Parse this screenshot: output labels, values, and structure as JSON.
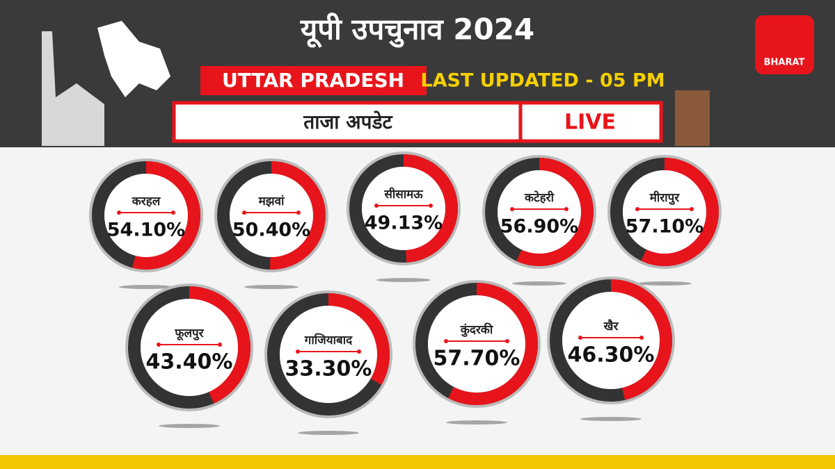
{
  "header": {
    "title": "यूपी उपचुनाव 2024",
    "state": "UTTAR PRADESH",
    "updated": "LAST UPDATED - 05 PM",
    "subtitle": "ताजा अपडेट",
    "live": "LIVE",
    "logo": "BHARAT"
  },
  "chart_data": {
    "type": "gauge",
    "categories": [
      "करहल",
      "मझवां",
      "सीसामऊ",
      "कटेहरी",
      "मीरापुर",
      "फूलपुर",
      "गाजियाबाद",
      "कुंदरकी",
      "खैर"
    ],
    "values": [
      54.1,
      50.4,
      49.13,
      56.9,
      57.1,
      43.4,
      33.3,
      57.7,
      46.3
    ],
    "value_labels": [
      "54.10%",
      "50.40%",
      "49.13%",
      "56.90%",
      "57.10%",
      "43.40%",
      "33.30%",
      "57.70%",
      "46.30%"
    ],
    "ylim": [
      0,
      100
    ],
    "color": "#e8141b"
  }
}
